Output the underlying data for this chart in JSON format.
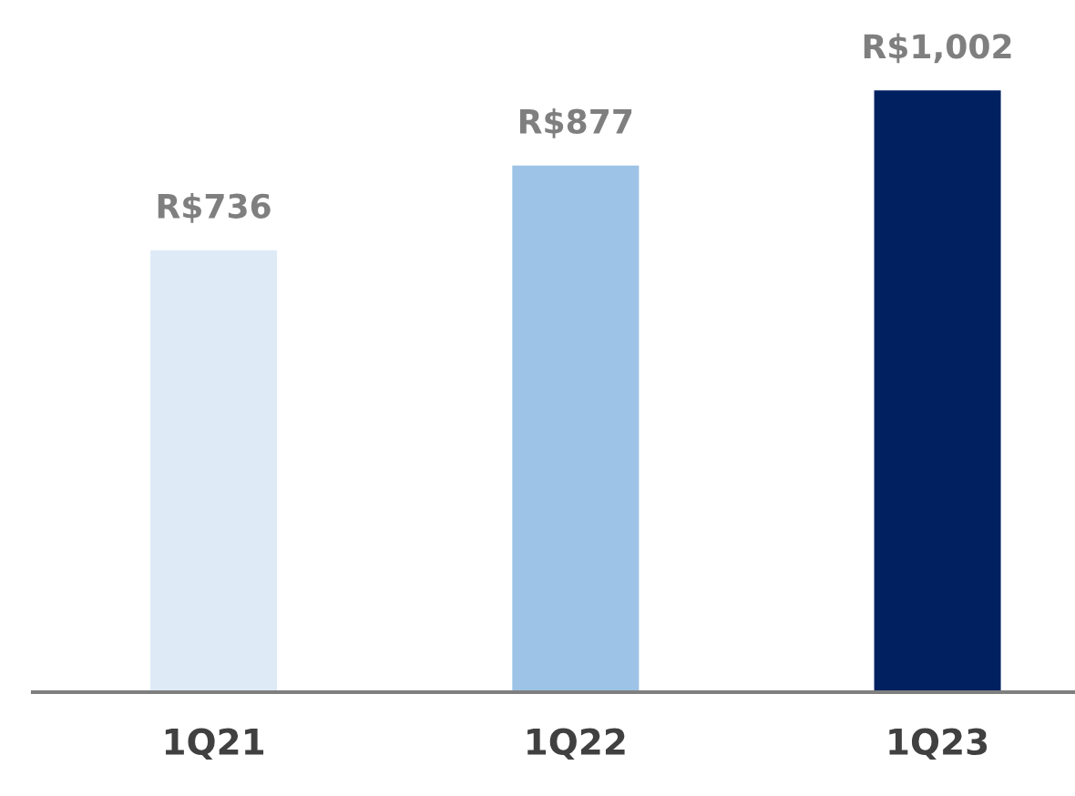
{
  "chart_data": {
    "type": "bar",
    "categories": [
      "1Q21",
      "1Q22",
      "1Q23"
    ],
    "values": [
      736,
      877,
      1002
    ],
    "colors": [
      "#deeaf6",
      "#9dc3e6",
      "#002060"
    ],
    "value_labels": [
      "R$736",
      "R$877",
      "R$1,002"
    ],
    "grid": false,
    "legend": false,
    "tick_labels": "x"
  }
}
